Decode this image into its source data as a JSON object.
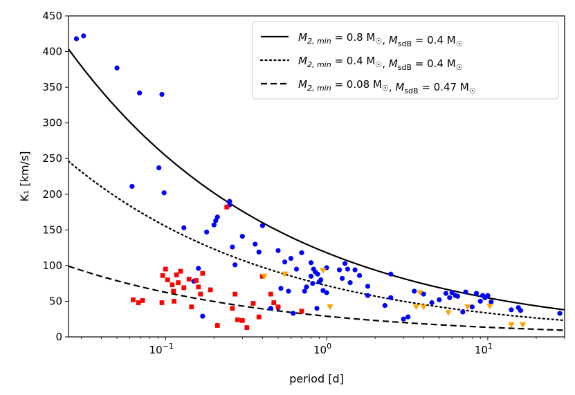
{
  "chart_data": {
    "type": "scatter",
    "xscale": "log",
    "xlim": [
      0.025,
      30
    ],
    "ylim": [
      0,
      450
    ],
    "xlabel": "period [d]",
    "ylabel": "K₁ [km/s]",
    "yticks": [
      0,
      50,
      100,
      150,
      200,
      250,
      300,
      350,
      400,
      450
    ],
    "xticks": [
      {
        "value": 0.1,
        "base": "10",
        "exp": "−1"
      },
      {
        "value": 1,
        "base": "10",
        "exp": "0"
      },
      {
        "value": 10,
        "base": "10",
        "exp": "1"
      }
    ],
    "legend": {
      "placement": "top-right",
      "entries": [
        {
          "line": "solid",
          "m2": "M",
          "m2sub": "2, min",
          "m2val": " = 0.8 M",
          "sep": ", ",
          "msdb": "M",
          "msdbsub": "sdB",
          "msdbval": " = 0.4 M"
        },
        {
          "line": "dotted",
          "m2": "M",
          "m2sub": "2, min",
          "m2val": " = 0.4 M",
          "sep": ", ",
          "msdb": "M",
          "msdbsub": "sdB",
          "msdbval": " = 0.4 M"
        },
        {
          "line": "dashed",
          "m2": "M",
          "m2sub": "2, min",
          "m2val": " = 0.08 M",
          "sep": ", ",
          "msdb": "M",
          "msdbsub": "sdB",
          "msdbval": " = 0.47 M"
        }
      ]
    },
    "curves": [
      {
        "style": "solid",
        "k_at_1d": 118,
        "exponent": -0.3333
      },
      {
        "style": "dotted",
        "k_at_1d": 72,
        "exponent": -0.3333
      },
      {
        "style": "dashed",
        "k_at_1d": 29,
        "exponent": -0.3333
      }
    ],
    "series": [
      {
        "marker": "circle",
        "color": "#0000ff",
        "points": [
          [
            0.028,
            418
          ],
          [
            0.031,
            422
          ],
          [
            0.05,
            377
          ],
          [
            0.069,
            342
          ],
          [
            0.095,
            340
          ],
          [
            0.091,
            237
          ],
          [
            0.062,
            211
          ],
          [
            0.098,
            202
          ],
          [
            0.13,
            153
          ],
          [
            0.18,
            147
          ],
          [
            0.2,
            157
          ],
          [
            0.21,
            168
          ],
          [
            0.205,
            163
          ],
          [
            0.25,
            190
          ],
          [
            0.25,
            185
          ],
          [
            0.26,
            126
          ],
          [
            0.27,
            101
          ],
          [
            0.3,
            141
          ],
          [
            0.36,
            130
          ],
          [
            0.38,
            119
          ],
          [
            0.4,
            156
          ],
          [
            0.5,
            121
          ],
          [
            0.55,
            105
          ],
          [
            0.6,
            110
          ],
          [
            0.7,
            118
          ],
          [
            0.65,
            95
          ],
          [
            0.73,
            64
          ],
          [
            0.75,
            70
          ],
          [
            0.8,
            104
          ],
          [
            0.8,
            85
          ],
          [
            0.82,
            75
          ],
          [
            0.83,
            95
          ],
          [
            0.85,
            91
          ],
          [
            0.88,
            88
          ],
          [
            0.9,
            77
          ],
          [
            0.92,
            80
          ],
          [
            0.95,
            65
          ],
          [
            1.0,
            97
          ],
          [
            1.0,
            62
          ],
          [
            1.2,
            94
          ],
          [
            1.25,
            82
          ],
          [
            1.3,
            103
          ],
          [
            1.35,
            95
          ],
          [
            1.4,
            76
          ],
          [
            1.5,
            94
          ],
          [
            1.6,
            86
          ],
          [
            1.8,
            71
          ],
          [
            1.8,
            58
          ],
          [
            2.3,
            44
          ],
          [
            2.5,
            88
          ],
          [
            2.5,
            55
          ],
          [
            3.0,
            25
          ],
          [
            3.2,
            28
          ],
          [
            3.5,
            64
          ],
          [
            4.0,
            60
          ],
          [
            4.5,
            48
          ],
          [
            5.0,
            52
          ],
          [
            5.5,
            61
          ],
          [
            5.8,
            55
          ],
          [
            6.0,
            62
          ],
          [
            6.3,
            58
          ],
          [
            6.5,
            57
          ],
          [
            7.0,
            35
          ],
          [
            7.3,
            63
          ],
          [
            8.0,
            42
          ],
          [
            8.5,
            61
          ],
          [
            9.0,
            50
          ],
          [
            9.3,
            58
          ],
          [
            9.6,
            55
          ],
          [
            10.0,
            58
          ],
          [
            10.5,
            49
          ],
          [
            14.0,
            38
          ],
          [
            15.5,
            41
          ],
          [
            16.0,
            37
          ],
          [
            28.0,
            33
          ],
          [
            0.17,
            29
          ],
          [
            0.16,
            96
          ],
          [
            0.15,
            78
          ],
          [
            0.52,
            68
          ],
          [
            0.5,
            41
          ],
          [
            0.45,
            40
          ],
          [
            0.58,
            64
          ],
          [
            0.62,
            33
          ],
          [
            0.87,
            40
          ]
        ]
      },
      {
        "marker": "square",
        "color": "#ff0000",
        "points": [
          [
            0.063,
            52
          ],
          [
            0.068,
            48
          ],
          [
            0.072,
            51
          ],
          [
            0.095,
            48
          ],
          [
            0.096,
            86
          ],
          [
            0.1,
            95
          ],
          [
            0.103,
            80
          ],
          [
            0.11,
            73
          ],
          [
            0.112,
            64
          ],
          [
            0.113,
            50
          ],
          [
            0.117,
            87
          ],
          [
            0.12,
            76
          ],
          [
            0.124,
            92
          ],
          [
            0.13,
            69
          ],
          [
            0.14,
            81
          ],
          [
            0.145,
            42
          ],
          [
            0.155,
            79
          ],
          [
            0.16,
            70
          ],
          [
            0.165,
            60
          ],
          [
            0.17,
            89
          ],
          [
            0.19,
            66
          ],
          [
            0.21,
            16
          ],
          [
            0.24,
            182
          ],
          [
            0.26,
            40
          ],
          [
            0.27,
            60
          ],
          [
            0.28,
            24
          ],
          [
            0.3,
            23
          ],
          [
            0.32,
            13
          ],
          [
            0.35,
            47
          ],
          [
            0.38,
            28
          ],
          [
            0.4,
            85
          ],
          [
            0.45,
            60
          ],
          [
            0.47,
            48
          ],
          [
            0.5,
            42
          ],
          [
            0.7,
            36
          ]
        ]
      },
      {
        "marker": "triangle-down",
        "color": "#ffa500",
        "points": [
          [
            0.41,
            85
          ],
          [
            0.55,
            88
          ],
          [
            0.95,
            93
          ],
          [
            1.05,
            42
          ],
          [
            3.6,
            42
          ],
          [
            4.0,
            42
          ],
          [
            5.7,
            34
          ],
          [
            7.5,
            42
          ],
          [
            10.3,
            43
          ],
          [
            14.0,
            17
          ],
          [
            16.5,
            17
          ],
          [
            3.8,
            62
          ]
        ]
      }
    ]
  }
}
